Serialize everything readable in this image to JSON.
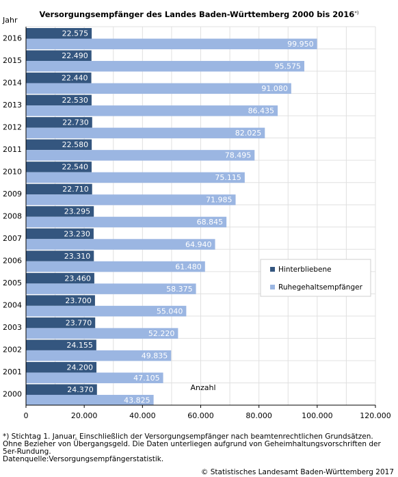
{
  "title": "Versorgungsempfänger des Landes Baden-Württemberg 2000 bis 2016",
  "title_note_mark": "*)",
  "chart_data": {
    "type": "bar",
    "orientation": "horizontal",
    "categories": [
      "2016",
      "2015",
      "2014",
      "2013",
      "2012",
      "2011",
      "2010",
      "2009",
      "2008",
      "2007",
      "2006",
      "2005",
      "2004",
      "2003",
      "2002",
      "2001",
      "2000"
    ],
    "series": [
      {
        "name": "Hinterbliebene",
        "color": "#34567f",
        "values": [
          22575,
          22490,
          22440,
          22530,
          22730,
          22580,
          22540,
          22710,
          23295,
          23230,
          23310,
          23460,
          23700,
          23770,
          24155,
          24200,
          24370
        ],
        "labels": [
          "22.575",
          "22.490",
          "22.440",
          "22.530",
          "22.730",
          "22.580",
          "22.540",
          "22.710",
          "23.295",
          "23.230",
          "23.310",
          "23.460",
          "23.700",
          "23.770",
          "24.155",
          "24.200",
          "24.370"
        ]
      },
      {
        "name": "Ruhegehaltsempfänger",
        "color": "#9bb6e2",
        "values": [
          99950,
          95575,
          91080,
          86435,
          82025,
          78495,
          75115,
          71985,
          68845,
          64940,
          61480,
          58375,
          55040,
          52220,
          49835,
          47105,
          43825
        ],
        "labels": [
          "99.950",
          "95.575",
          "91.080",
          "86.435",
          "82.025",
          "78.495",
          "75.115",
          "71.985",
          "68.845",
          "64.940",
          "61.480",
          "58.375",
          "55.040",
          "52.220",
          "49.835",
          "47.105",
          "43.825"
        ]
      }
    ],
    "xlabel": "Anzahl",
    "ylabel": "Jahr",
    "xlim": [
      0,
      120000
    ],
    "xticks": [
      0,
      20000,
      40000,
      60000,
      80000,
      100000,
      120000
    ],
    "xtick_labels": [
      "0",
      "20.000",
      "40.000",
      "60.000",
      "80.000",
      "100.000",
      "120.000"
    ],
    "grid": true,
    "legend_position": "right"
  },
  "footnote": {
    "line1": "*)  Stichtag 1. Januar. Einschließlich der Versorgungsempfänger nach beamtenrechtlichen Grundsätzen.",
    "line2": "Ohne Bezieher von Übergangsgeld. Die Daten unterliegen aufgrund von Geheimhaltungsvorschriften der",
    "line3": "5er-Rundung.",
    "source": "Datenquelle:Versorgungsempfängerstatistik."
  },
  "copyright": "© Statistisches Landesamt Baden-Württemberg 2017"
}
